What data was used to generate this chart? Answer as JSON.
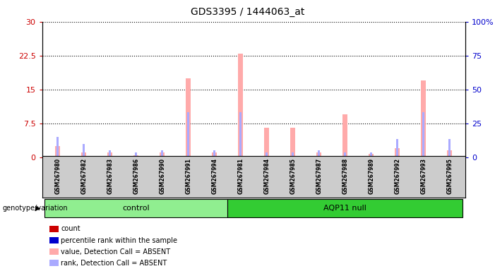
{
  "title": "GDS3395 / 1444063_at",
  "samples": [
    "GSM267980",
    "GSM267982",
    "GSM267983",
    "GSM267986",
    "GSM267990",
    "GSM267991",
    "GSM267994",
    "GSM267981",
    "GSM267984",
    "GSM267985",
    "GSM267987",
    "GSM267988",
    "GSM267989",
    "GSM267992",
    "GSM267993",
    "GSM267995"
  ],
  "groups": {
    "control": [
      "GSM267980",
      "GSM267982",
      "GSM267983",
      "GSM267986",
      "GSM267990",
      "GSM267991",
      "GSM267994"
    ],
    "AQP11 null": [
      "GSM267981",
      "GSM267984",
      "GSM267985",
      "GSM267987",
      "GSM267988",
      "GSM267989",
      "GSM267992",
      "GSM267993",
      "GSM267995"
    ]
  },
  "value_absent": [
    2.5,
    1.0,
    1.0,
    0.5,
    1.0,
    17.5,
    1.0,
    23.0,
    6.5,
    6.5,
    1.0,
    9.5,
    0.8,
    2.0,
    17.0,
    1.5
  ],
  "rank_absent": [
    15.0,
    10.0,
    5.0,
    3.3,
    5.0,
    33.3,
    5.0,
    33.3,
    3.3,
    3.3,
    5.0,
    3.3,
    3.3,
    13.3,
    33.3,
    13.3
  ],
  "left_yaxis": {
    "min": 0,
    "max": 30,
    "ticks": [
      0,
      7.5,
      15,
      22.5,
      30
    ],
    "color": "#cc0000"
  },
  "right_yaxis": {
    "min": 0,
    "max": 100,
    "ticks": [
      0,
      25,
      50,
      75,
      100
    ],
    "color": "#0000cc"
  },
  "bar_color_value_absent": "#ffaaaa",
  "bar_color_rank_absent": "#aaaaff",
  "bar_color_count": "#cc0000",
  "bar_color_percentile": "#0000cc",
  "group_control_color": "#90ee90",
  "group_aqp11_color": "#33cc33",
  "bar_width": 0.18,
  "legend_items": [
    {
      "label": "count",
      "color": "#cc0000"
    },
    {
      "label": "percentile rank within the sample",
      "color": "#0000cc"
    },
    {
      "label": "value, Detection Call = ABSENT",
      "color": "#ffaaaa"
    },
    {
      "label": "rank, Detection Call = ABSENT",
      "color": "#aaaaff"
    }
  ]
}
